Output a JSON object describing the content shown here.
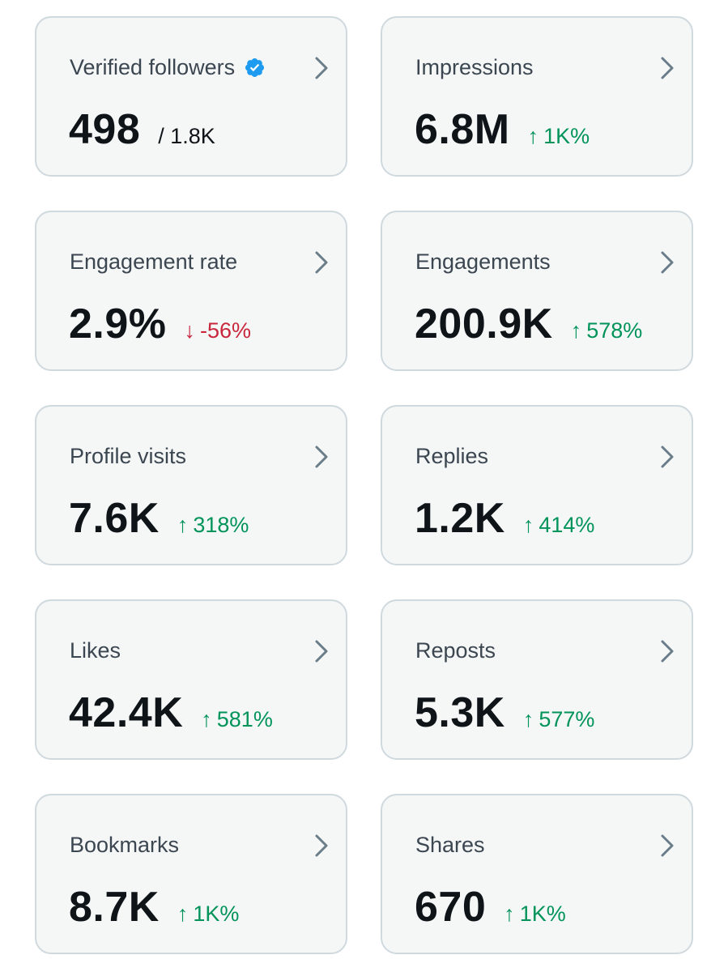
{
  "colors": {
    "card_background": "#f5f7f7",
    "card_border": "#cfd9de",
    "positive": "#00935a",
    "negative": "#c9253c",
    "verified": "#1d9bf0"
  },
  "cards": [
    {
      "label": "Verified followers",
      "value": "498",
      "sub": "/ 1.8K",
      "icon": "verified-badge-icon"
    },
    {
      "label": "Impressions",
      "value": "6.8M",
      "change": "1K%",
      "direction": "up",
      "arrow": "↑"
    },
    {
      "label": "Engagement rate",
      "value": "2.9%",
      "change": "-56%",
      "direction": "down",
      "arrow": "↓"
    },
    {
      "label": "Engagements",
      "value": "200.9K",
      "change": "578%",
      "direction": "up",
      "arrow": "↑"
    },
    {
      "label": "Profile visits",
      "value": "7.6K",
      "change": "318%",
      "direction": "up",
      "arrow": "↑"
    },
    {
      "label": "Replies",
      "value": "1.2K",
      "change": "414%",
      "direction": "up",
      "arrow": "↑"
    },
    {
      "label": "Likes",
      "value": "42.4K",
      "change": "581%",
      "direction": "up",
      "arrow": "↑"
    },
    {
      "label": "Reposts",
      "value": "5.3K",
      "change": "577%",
      "direction": "up",
      "arrow": "↑"
    },
    {
      "label": "Bookmarks",
      "value": "8.7K",
      "change": "1K%",
      "direction": "up",
      "arrow": "↑"
    },
    {
      "label": "Shares",
      "value": "670",
      "change": "1K%",
      "direction": "up",
      "arrow": "↑"
    }
  ]
}
